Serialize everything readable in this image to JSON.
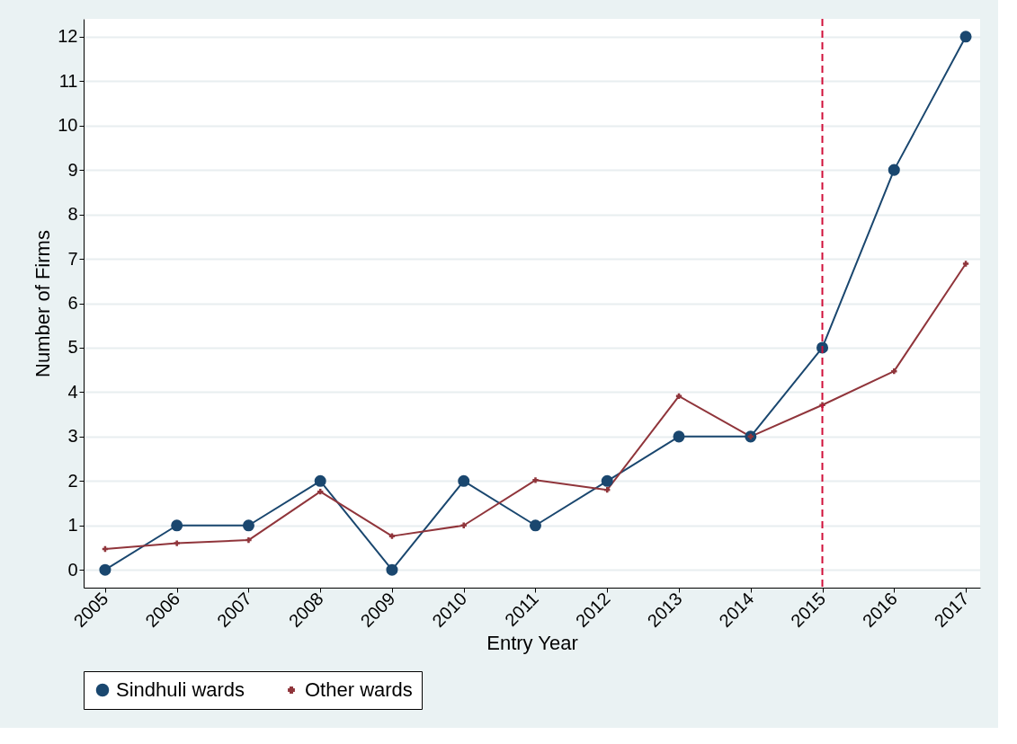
{
  "chart_data": {
    "type": "line",
    "xlabel": "Entry Year",
    "ylabel": "Number of Firms",
    "x": [
      2005,
      2006,
      2007,
      2008,
      2009,
      2010,
      2011,
      2012,
      2013,
      2014,
      2015,
      2016,
      2017
    ],
    "series": [
      {
        "name": "Sindhuli wards",
        "color": "#1a476f",
        "marker": "circle",
        "values": [
          0,
          1,
          1,
          2,
          0,
          2,
          1,
          2,
          3,
          3,
          5,
          9,
          12
        ]
      },
      {
        "name": "Other wards",
        "color": "#90353b",
        "marker": "cross",
        "values": [
          0.47,
          0.6,
          0.67,
          1.76,
          0.76,
          1.0,
          2.02,
          1.8,
          3.91,
          3.0,
          3.71,
          4.47,
          6.89
        ]
      }
    ],
    "xlim": [
      2004.7,
      2017.2
    ],
    "xticks": [
      2005,
      2006,
      2007,
      2008,
      2009,
      2010,
      2011,
      2012,
      2013,
      2014,
      2015,
      2016,
      2017
    ],
    "ylim": [
      -0.4,
      12.4
    ],
    "yticks": [
      0,
      1,
      2,
      3,
      4,
      5,
      6,
      7,
      8,
      9,
      10,
      11,
      12
    ],
    "ref_lines": [
      {
        "axis": "x",
        "value": 2015,
        "color": "#d0103a",
        "line_style": "dashed"
      }
    ],
    "grid": "y",
    "legend": "bottom",
    "line_style": "solid"
  }
}
